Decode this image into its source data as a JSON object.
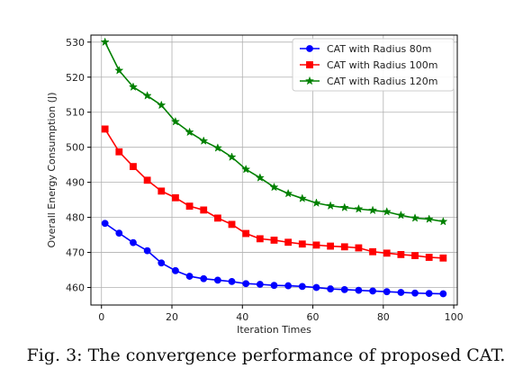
{
  "caption": "Fig. 3: The convergence performance of proposed CAT.",
  "chart_data": {
    "type": "line",
    "title": "",
    "xlabel": "Iteration Times",
    "ylabel": "Overall Energy Consumption (J)",
    "xlim": [
      -3,
      101
    ],
    "ylim": [
      455,
      532
    ],
    "xticks": [
      0,
      20,
      40,
      60,
      80,
      100
    ],
    "yticks": [
      460,
      470,
      480,
      490,
      500,
      510,
      520,
      530
    ],
    "grid": true,
    "legend_position": "top-right",
    "x": [
      1,
      5,
      9,
      13,
      17,
      21,
      25,
      29,
      33,
      37,
      41,
      45,
      49,
      53,
      57,
      61,
      65,
      69,
      73,
      77,
      81,
      85,
      89,
      93,
      97
    ],
    "series": [
      {
        "name": "CAT with Radius 80m",
        "color": "#0000ff",
        "marker": "circle",
        "values": [
          478.3,
          475.5,
          472.8,
          470.5,
          467.0,
          464.8,
          463.2,
          462.5,
          462.1,
          461.7,
          461.1,
          460.9,
          460.6,
          460.5,
          460.3,
          460.0,
          459.6,
          459.4,
          459.2,
          459.0,
          458.8,
          458.6,
          458.4,
          458.3,
          458.2
        ]
      },
      {
        "name": "CAT with Radius 100m",
        "color": "#ff0000",
        "marker": "square",
        "values": [
          505.2,
          498.7,
          494.5,
          490.6,
          487.5,
          485.6,
          483.2,
          482.1,
          479.8,
          478.0,
          475.4,
          473.9,
          473.5,
          472.9,
          472.4,
          472.1,
          471.8,
          471.6,
          471.3,
          470.2,
          469.8,
          469.4,
          469.1,
          468.6,
          468.4
        ]
      },
      {
        "name": "CAT with Radius 120m",
        "color": "#008000",
        "marker": "star",
        "values": [
          530.0,
          521.9,
          517.2,
          514.7,
          512.0,
          507.3,
          504.3,
          501.8,
          499.8,
          497.2,
          493.7,
          491.3,
          488.6,
          486.8,
          485.4,
          484.1,
          483.3,
          482.8,
          482.4,
          482.0,
          481.6,
          480.6,
          479.8,
          479.5,
          478.8
        ]
      }
    ]
  }
}
